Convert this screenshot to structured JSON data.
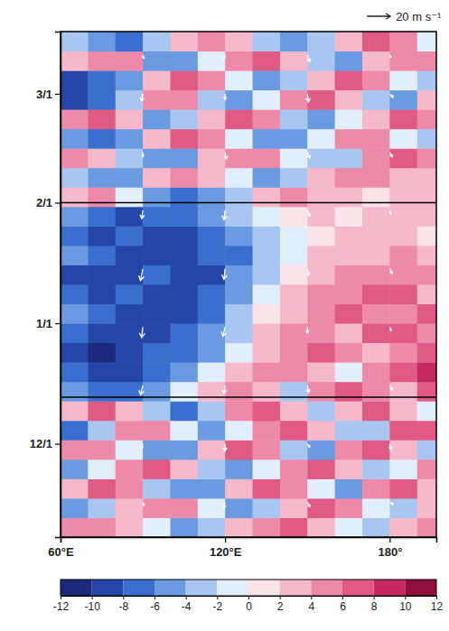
{
  "chart_data": {
    "type": "heatmap",
    "xlim": [
      60,
      197
    ],
    "xticks": [
      {
        "value": 60,
        "label": "60°E"
      },
      {
        "value": 120,
        "label": "120°E"
      },
      {
        "value": 180,
        "label": "180°"
      }
    ],
    "ylim": [
      6,
      136
    ],
    "yticks": [
      {
        "value": 30,
        "label": "12/1"
      },
      {
        "value": 61,
        "label": "1/1"
      },
      {
        "value": 92,
        "label": "2/1"
      },
      {
        "value": 120,
        "label": "3/1"
      }
    ],
    "x": [
      65,
      75,
      85,
      95,
      105,
      115,
      125,
      135,
      145,
      155,
      165,
      175,
      185,
      195
    ],
    "y": [
      8.5,
      13.5,
      18.5,
      23.5,
      28.5,
      33.5,
      38.5,
      43.5,
      48.5,
      53.5,
      58.5,
      63.5,
      68.5,
      73.5,
      78.5,
      83.5,
      88.5,
      93.5,
      98.5,
      103.5,
      108.5,
      113.5,
      118.5,
      123.5,
      128.5,
      133.5
    ],
    "values": [
      [
        4,
        5,
        3,
        -2,
        -5,
        -4,
        2,
        5,
        6,
        3,
        -2,
        -4,
        3,
        5
      ],
      [
        -6,
        -4,
        2,
        5,
        4,
        -2,
        -5,
        -3,
        3,
        6,
        5,
        -1,
        -4,
        2
      ],
      [
        3,
        6,
        4,
        -3,
        -6,
        -5,
        2,
        6,
        4,
        -2,
        -5,
        4,
        6,
        3
      ],
      [
        -5,
        -2,
        5,
        6,
        2,
        -4,
        -6,
        -2,
        5,
        7,
        2,
        -4,
        -2,
        5
      ],
      [
        4,
        5,
        -2,
        -6,
        -5,
        3,
        6,
        5,
        -3,
        -5,
        4,
        7,
        3,
        -3
      ],
      [
        -7,
        -3,
        4,
        5,
        -2,
        -6,
        -2,
        4,
        6,
        2,
        -4,
        -3,
        6,
        7
      ],
      [
        2,
        6,
        3,
        -4,
        -7,
        -3,
        5,
        7,
        2,
        -4,
        3,
        6,
        2,
        -2
      ],
      [
        -6,
        -8,
        -7,
        -5,
        -2,
        3,
        5,
        2,
        -3,
        4,
        7,
        5,
        3,
        6
      ],
      [
        -8,
        -10,
        -9,
        -7,
        -6,
        -2,
        2,
        4,
        5,
        3,
        -2,
        4,
        6,
        8
      ],
      [
        -10,
        -11,
        -9,
        -8,
        -7,
        -5,
        -1,
        3,
        4,
        6,
        5,
        2,
        5,
        7
      ],
      [
        -7,
        -9,
        -10,
        -9,
        -8,
        -6,
        -3,
        2,
        5,
        4,
        3,
        6,
        7,
        4
      ],
      [
        -5,
        -8,
        -9,
        -10,
        -9,
        -7,
        -4,
        1,
        3,
        5,
        6,
        4,
        5,
        6
      ],
      [
        -8,
        -9,
        -8,
        -9,
        -10,
        -8,
        -5,
        -2,
        2,
        4,
        5,
        7,
        6,
        3
      ],
      [
        -9,
        -10,
        -9,
        -8,
        -9,
        -9,
        -6,
        -3,
        1,
        3,
        4,
        5,
        4,
        5
      ],
      [
        -6,
        -8,
        -9,
        -10,
        -10,
        -8,
        -7,
        -4,
        -1,
        2,
        3,
        2,
        4,
        3
      ],
      [
        -7,
        -9,
        -8,
        -9,
        -9,
        -7,
        -5,
        -3,
        -1,
        1,
        2,
        3,
        2,
        1
      ],
      [
        -5,
        -7,
        -9,
        -8,
        -8,
        -6,
        -4,
        -2,
        1,
        2,
        1,
        2,
        3,
        2
      ],
      [
        3,
        5,
        -2,
        -5,
        -7,
        -6,
        -3,
        2,
        4,
        3,
        2,
        1,
        2,
        3
      ],
      [
        -4,
        -6,
        -5,
        2,
        4,
        3,
        -2,
        -5,
        -3,
        2,
        4,
        5,
        3,
        2
      ],
      [
        4,
        2,
        -4,
        -6,
        -5,
        2,
        5,
        4,
        -2,
        -4,
        -3,
        4,
        6,
        5
      ],
      [
        -6,
        -7,
        -5,
        3,
        6,
        4,
        -2,
        -5,
        -6,
        -1,
        4,
        5,
        -2,
        -3
      ],
      [
        5,
        6,
        3,
        -5,
        -4,
        2,
        6,
        5,
        -3,
        -5,
        -2,
        3,
        6,
        4
      ],
      [
        -9,
        -7,
        -3,
        4,
        5,
        -3,
        -6,
        -2,
        4,
        6,
        3,
        -3,
        -5,
        2
      ],
      [
        -10,
        -8,
        -6,
        2,
        6,
        5,
        -2,
        -5,
        -4,
        3,
        6,
        5,
        -2,
        -4
      ],
      [
        3,
        5,
        4,
        -5,
        -6,
        -2,
        4,
        6,
        3,
        -3,
        -5,
        2,
        5,
        4
      ],
      [
        -4,
        -6,
        -7,
        -3,
        3,
        5,
        2,
        -4,
        -6,
        -3,
        3,
        6,
        4,
        -2
      ]
    ],
    "reference_lines": [
      42,
      92
    ],
    "vectors": {
      "x": [
        90,
        120,
        150,
        180
      ],
      "y": [
        15,
        30,
        45,
        60,
        75,
        90,
        105,
        120,
        130
      ],
      "u": [
        [
          1,
          -1,
          2,
          3
        ],
        [
          -1,
          0,
          2,
          1
        ],
        [
          -2,
          -1,
          1,
          2
        ],
        [
          -1,
          -2,
          0,
          1
        ],
        [
          -2,
          -1,
          1,
          2
        ],
        [
          -1,
          -1,
          2,
          1
        ],
        [
          0,
          1,
          2,
          2
        ],
        [
          -1,
          0,
          1,
          3
        ],
        [
          1,
          -1,
          2,
          1
        ]
      ],
      "v": [
        [
          -3,
          -5,
          -4,
          -2
        ],
        [
          -4,
          -6,
          -3,
          -5
        ],
        [
          -8,
          -7,
          -6,
          -4
        ],
        [
          -9,
          -8,
          -5,
          -3
        ],
        [
          -10,
          -9,
          -6,
          -4
        ],
        [
          -7,
          -8,
          -5,
          -3
        ],
        [
          -4,
          -6,
          -5,
          -4
        ],
        [
          -6,
          -5,
          -7,
          -3
        ],
        [
          -3,
          -4,
          -6,
          -2
        ]
      ]
    },
    "vector_key": {
      "value": 20,
      "label": "20 m s⁻¹"
    },
    "colorbar": {
      "range": [
        -12,
        12
      ],
      "ticks": [
        -12,
        -10,
        -8,
        -6,
        -4,
        -2,
        0,
        2,
        4,
        6,
        8,
        10,
        12
      ],
      "colors": [
        "#1b2a7a",
        "#2546a8",
        "#3a6fd0",
        "#6a9ae0",
        "#a8c6ef",
        "#e3eefb",
        "#fbe3ea",
        "#f6b9cc",
        "#ee8aa9",
        "#e05a86",
        "#c42a61",
        "#8e0f3e"
      ]
    }
  }
}
